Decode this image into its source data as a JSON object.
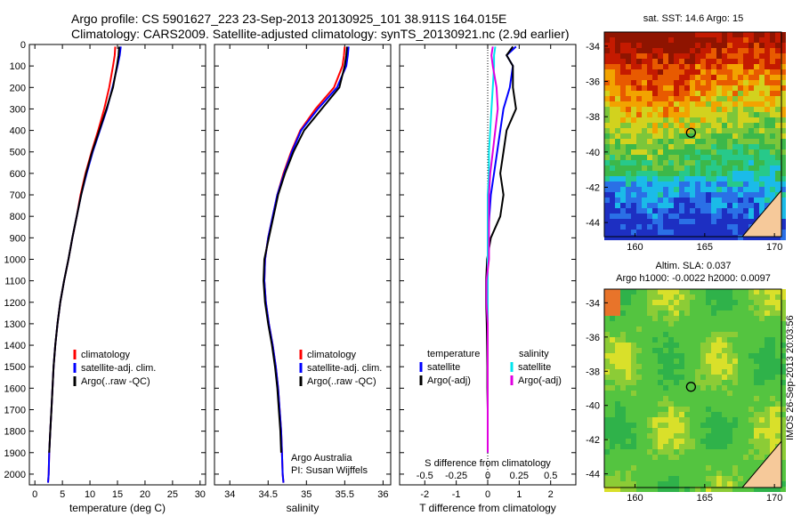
{
  "header": {
    "line1": "Argo profile: CS 5901627_223 23-Sep-2013 20130925_101 38.911S 164.015E",
    "line2": "Climatology: CARS2009. Satellite-adjusted climatology: synTS_20130921.nc (2.9d earlier)"
  },
  "credit": "IMOS 26-Sep-2013 20:03:56",
  "colors": {
    "climatology": "#ff0000",
    "satellite": "#0000ff",
    "argo": "#000000",
    "s_satellite": "#00e5ee",
    "s_argo": "#e000e0"
  },
  "chart_data": [
    {
      "type": "line",
      "panel": "temperature",
      "xlabel": "temperature (deg C)",
      "ylabel": "",
      "xlim": [
        -1,
        31
      ],
      "ylim": [
        2050,
        0
      ],
      "xticks": [
        0,
        5,
        10,
        15,
        20,
        25,
        30
      ],
      "yticks": [
        0,
        100,
        200,
        300,
        400,
        500,
        600,
        700,
        800,
        900,
        1000,
        1100,
        1200,
        1300,
        1400,
        1500,
        1600,
        1700,
        1800,
        1900,
        2000
      ],
      "legend": [
        "climatology",
        "satellite-adj. clim.",
        "Argo(..raw -QC)"
      ],
      "series": [
        {
          "name": "climatology",
          "color": "#ff0000",
          "x": [
            14.6,
            14.5,
            14.2,
            13.5,
            12.6,
            11.5,
            10.3,
            9.2,
            8.3,
            7.6,
            6.8,
            6.1,
            5.3,
            4.6,
            4.1,
            3.7,
            3.4,
            3.2,
            3.0,
            2.8,
            2.6,
            2.5,
            2.4
          ],
          "y": [
            10,
            50,
            100,
            200,
            300,
            400,
            500,
            600,
            700,
            800,
            900,
            1000,
            1100,
            1200,
            1300,
            1400,
            1500,
            1600,
            1700,
            1800,
            1900,
            2000,
            2040
          ]
        },
        {
          "name": "satellite-adj. clim.",
          "color": "#0000ff",
          "x": [
            15.6,
            15.4,
            15.0,
            14.1,
            13.1,
            11.8,
            10.5,
            9.4,
            8.4,
            7.6,
            6.8,
            6.1,
            5.3,
            4.6,
            4.1,
            3.7,
            3.4,
            3.2,
            3.0,
            2.8,
            2.6,
            2.5,
            2.4
          ],
          "y": [
            10,
            50,
            100,
            200,
            300,
            400,
            500,
            600,
            700,
            800,
            900,
            1000,
            1100,
            1200,
            1300,
            1400,
            1500,
            1600,
            1700,
            1800,
            1900,
            2000,
            2040
          ]
        },
        {
          "name": "Argo(..raw -QC)",
          "color": "#000000",
          "x": [
            15.3,
            15.2,
            14.9,
            14.2,
            13.0,
            11.7,
            10.4,
            9.3,
            8.4,
            7.6,
            6.8,
            6.1,
            5.3,
            4.6,
            4.1,
            3.7,
            3.4,
            3.2,
            3.0,
            2.8,
            2.6
          ],
          "y": [
            10,
            50,
            100,
            200,
            300,
            400,
            500,
            600,
            700,
            800,
            900,
            1000,
            1100,
            1200,
            1300,
            1400,
            1500,
            1600,
            1700,
            1800,
            1900
          ]
        }
      ]
    },
    {
      "type": "line",
      "panel": "salinity",
      "xlabel": "salinity",
      "ylabel": "",
      "xlim": [
        33.8,
        36.1
      ],
      "ylim": [
        2050,
        0
      ],
      "xticks": [
        34,
        34.5,
        35,
        35.5,
        36
      ],
      "legend": [
        "climatology",
        "satellite-adj. clim.",
        "Argo(..raw -QC)"
      ],
      "annotation": [
        "Argo Australia",
        "PI: Susan Wijffels"
      ],
      "series": [
        {
          "name": "climatology",
          "color": "#ff0000",
          "x": [
            35.5,
            35.49,
            35.47,
            35.36,
            35.12,
            34.92,
            34.8,
            34.7,
            34.62,
            34.56,
            34.5,
            34.46,
            34.45,
            34.47,
            34.51,
            34.56,
            34.6,
            34.63,
            34.65,
            34.67,
            34.68,
            34.69,
            34.7
          ],
          "y": [
            10,
            50,
            100,
            200,
            300,
            400,
            500,
            600,
            700,
            800,
            900,
            1000,
            1100,
            1200,
            1300,
            1400,
            1500,
            1600,
            1700,
            1800,
            1900,
            2000,
            2040
          ]
        },
        {
          "name": "satellite-adj. clim.",
          "color": "#0000ff",
          "x": [
            35.55,
            35.54,
            35.52,
            35.4,
            35.15,
            34.93,
            34.81,
            34.71,
            34.62,
            34.56,
            34.5,
            34.46,
            34.45,
            34.47,
            34.51,
            34.56,
            34.6,
            34.63,
            34.65,
            34.67,
            34.68,
            34.69,
            34.7
          ],
          "y": [
            10,
            50,
            100,
            200,
            300,
            400,
            500,
            600,
            700,
            800,
            900,
            1000,
            1100,
            1200,
            1300,
            1400,
            1500,
            1600,
            1700,
            1800,
            1900,
            2000,
            2040
          ]
        },
        {
          "name": "Argo(..raw -QC)",
          "color": "#000000",
          "x": [
            35.53,
            35.52,
            35.5,
            35.43,
            35.2,
            34.97,
            34.83,
            34.72,
            34.63,
            34.57,
            34.51,
            34.45,
            34.44,
            34.46,
            34.5,
            34.55,
            34.59,
            34.62,
            34.64,
            34.66,
            34.67
          ],
          "y": [
            10,
            50,
            100,
            200,
            300,
            400,
            500,
            600,
            700,
            800,
            900,
            1000,
            1100,
            1200,
            1300,
            1400,
            1500,
            1600,
            1700,
            1800,
            1900
          ]
        }
      ]
    },
    {
      "type": "line",
      "panel": "difference",
      "xlabel": "T difference from climatology",
      "xlabel2": "S difference from climatology",
      "xlim": [
        -2.8,
        2.8
      ],
      "ylim": [
        2050,
        0
      ],
      "xticks": [
        -2,
        -1,
        0,
        1,
        2
      ],
      "xticks2_labels": [
        "-0.5",
        "-0.25",
        "0",
        "0.25",
        "0.5"
      ],
      "xticks2_values": [
        -0.5,
        -0.25,
        0,
        0.25,
        0.5
      ],
      "legend_temperature_title": "temperature",
      "legend_salinity_title": "salinity",
      "legend_temperature": [
        "satellite",
        "Argo(-adj)"
      ],
      "legend_salinity": [
        "satellite",
        "Argo(-adj)"
      ],
      "series": [
        {
          "name": "satellite",
          "group": "temperature",
          "color": "#0000ff",
          "x": [
            0.9,
            0.6,
            0.8,
            0.7,
            0.5,
            0.4,
            0.3,
            0.2,
            0.1,
            0.05,
            0.02,
            0.0,
            0.0,
            0.0,
            0.0,
            0.0,
            0.0,
            0.0,
            0.0,
            0.0,
            0.0
          ],
          "y": [
            10,
            50,
            100,
            200,
            300,
            400,
            500,
            600,
            700,
            800,
            900,
            1000,
            1100,
            1200,
            1300,
            1400,
            1500,
            1600,
            1700,
            1800,
            1900
          ]
        },
        {
          "name": "Argo(-adj)",
          "group": "temperature",
          "color": "#000000",
          "x": [
            0.8,
            0.6,
            0.8,
            0.8,
            0.9,
            0.6,
            0.5,
            0.4,
            0.5,
            0.4,
            0.1,
            -0.02,
            -0.05,
            -0.05,
            -0.03,
            -0.02,
            -0.01,
            -0.01,
            0.0,
            0.0,
            0.0
          ],
          "y": [
            10,
            50,
            100,
            200,
            300,
            400,
            500,
            600,
            700,
            800,
            900,
            1000,
            1100,
            1200,
            1300,
            1400,
            1500,
            1600,
            1700,
            1800,
            1900
          ]
        },
        {
          "name": "satellite",
          "group": "salinity",
          "color": "#00e5ee",
          "x": [
            0.06,
            0.05,
            0.05,
            0.04,
            0.03,
            0.02,
            0.01,
            0.01,
            0.0,
            0.0,
            0.0,
            0.0,
            0.0,
            0.0,
            0.0,
            0.0,
            0.0,
            0.0,
            0.0,
            0.0,
            0.0
          ],
          "y": [
            10,
            50,
            100,
            200,
            300,
            400,
            500,
            600,
            700,
            800,
            900,
            1000,
            1100,
            1200,
            1300,
            1400,
            1500,
            1600,
            1700,
            1800,
            1900
          ]
        },
        {
          "name": "Argo(-adj)",
          "group": "salinity",
          "color": "#e000e0",
          "x": [
            0.04,
            0.03,
            0.04,
            0.07,
            0.08,
            0.06,
            0.04,
            0.02,
            0.01,
            0.01,
            0.01,
            0.01,
            -0.01,
            -0.01,
            0.0,
            0.0,
            0.0,
            0.0,
            0.0,
            0.0,
            0.0
          ],
          "y": [
            10,
            50,
            100,
            200,
            300,
            400,
            500,
            600,
            700,
            800,
            900,
            1000,
            1100,
            1200,
            1300,
            1400,
            1500,
            1600,
            1700,
            1800,
            1900
          ]
        }
      ]
    },
    {
      "type": "heatmap",
      "panel": "sst_map",
      "title": "sat. SST: 14.6  Argo: 15",
      "xticks": [
        160,
        165,
        170
      ],
      "yticks": [
        -34,
        -36,
        -38,
        -40,
        -42,
        -44
      ],
      "xlim": [
        157.8,
        170.5
      ],
      "ylim": [
        -44.8,
        -33.2
      ],
      "marker": {
        "lon": 164.015,
        "lat": -38.911
      }
    },
    {
      "type": "heatmap",
      "panel": "sla_map",
      "title": "Altim. SLA: 0.037",
      "subtitle": "Argo h1000: -0.0022 h2000: 0.0097",
      "xticks": [
        160,
        165,
        170
      ],
      "yticks": [
        -34,
        -36,
        -38,
        -40,
        -42,
        -44
      ],
      "xlim": [
        157.8,
        170.5
      ],
      "ylim": [
        -44.8,
        -33.2
      ],
      "marker": {
        "lon": 164.015,
        "lat": -38.911
      }
    }
  ]
}
